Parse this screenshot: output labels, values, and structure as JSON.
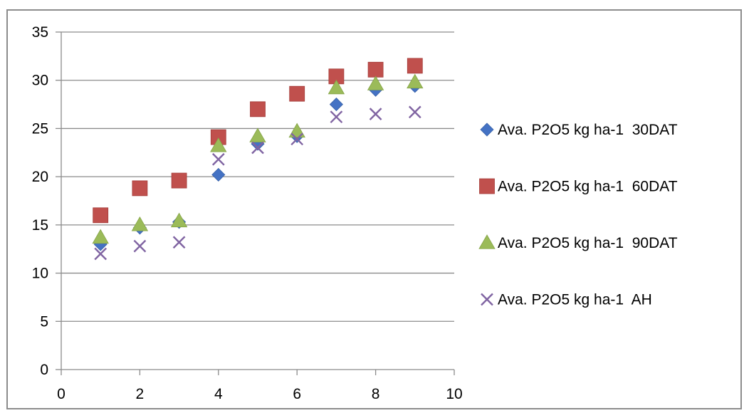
{
  "chart_data": {
    "type": "scatter",
    "title": "",
    "xlabel": "",
    "ylabel": "",
    "xlim": [
      0,
      10
    ],
    "ylim": [
      0,
      35
    ],
    "x_ticks": [
      0,
      2,
      4,
      6,
      8,
      10
    ],
    "y_ticks": [
      0,
      5,
      10,
      15,
      20,
      25,
      30,
      35
    ],
    "grid": "horizontal",
    "legend_position": "right",
    "x": [
      1,
      2,
      3,
      4,
      5,
      6,
      7,
      8,
      9
    ],
    "series": [
      {
        "name": "Ava. P2O5 kg ha-1  30DAT",
        "marker": "diamond",
        "color": "#4472c4",
        "values": [
          13.0,
          14.7,
          15.3,
          20.2,
          23.4,
          24.2,
          27.5,
          29.0,
          29.4
        ]
      },
      {
        "name": "Ava. P2O5 kg ha-1  60DAT",
        "marker": "square",
        "color": "#c0504d",
        "values": [
          16.0,
          18.8,
          19.6,
          24.1,
          27.0,
          28.6,
          30.4,
          31.1,
          31.5
        ]
      },
      {
        "name": "Ava. P2O5 kg ha-1  90DAT",
        "marker": "triangle",
        "color": "#9bbb59",
        "values": [
          13.7,
          15.0,
          15.4,
          23.2,
          24.2,
          24.7,
          29.2,
          29.6,
          29.8
        ]
      },
      {
        "name": "Ava. P2O5 kg ha-1  AH",
        "marker": "x",
        "color": "#8064a2",
        "values": [
          12.0,
          12.8,
          13.2,
          21.8,
          23.0,
          23.9,
          26.2,
          26.5,
          26.7
        ]
      }
    ]
  }
}
